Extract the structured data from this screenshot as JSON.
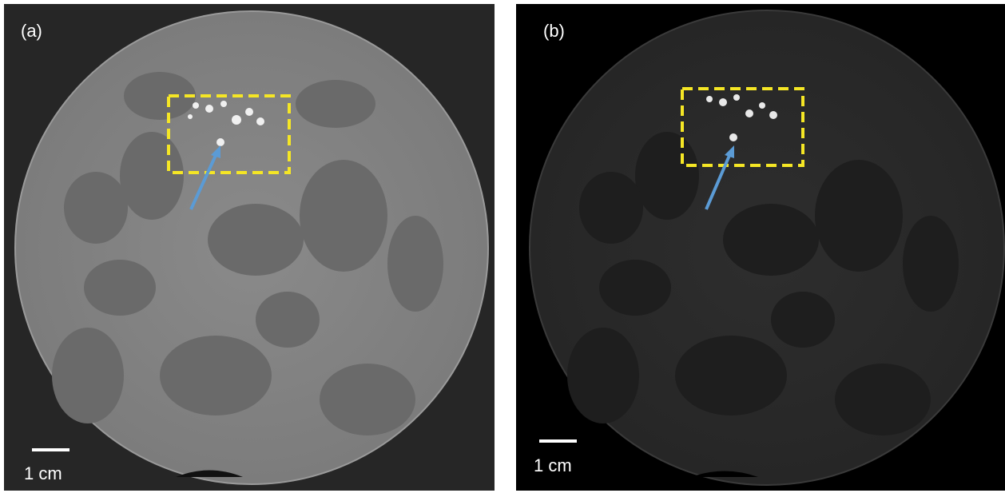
{
  "panels": [
    {
      "label": "(a)",
      "scale_label": "1 cm"
    },
    {
      "label": "(b)",
      "scale_label": "1 cm"
    }
  ]
}
